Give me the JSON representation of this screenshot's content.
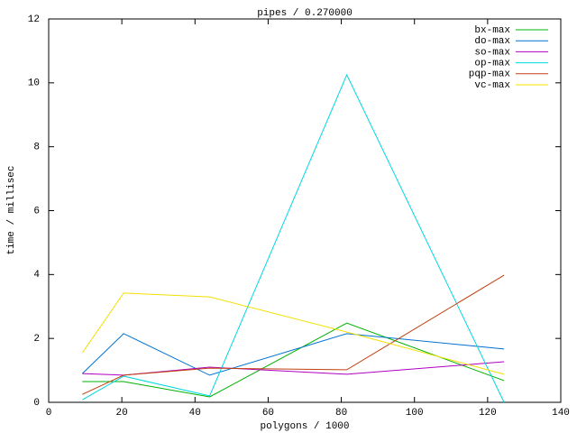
{
  "chart_data": {
    "type": "line",
    "title": "pipes / 0.270000",
    "x_label": "polygons / 1000",
    "y_label": "time / millisec",
    "x": [
      9.2,
      20.5,
      44,
      81.5,
      124.5
    ],
    "xlim": [
      0,
      140
    ],
    "xticks": [
      0,
      20,
      40,
      60,
      80,
      100,
      120,
      140
    ],
    "ylim": [
      0,
      12
    ],
    "yticks": [
      0,
      2,
      4,
      6,
      8,
      10,
      12
    ],
    "grid": false,
    "legend": "top-right",
    "series": [
      {
        "name": "bx-max",
        "color": "#00b000",
        "values": [
          0.65,
          0.65,
          0.17,
          2.48,
          0.68
        ]
      },
      {
        "name": "do-max",
        "color": "#0070d0",
        "values": [
          0.9,
          2.15,
          0.85,
          2.15,
          1.67
        ]
      },
      {
        "name": "so-max",
        "color": "#b000c0",
        "values": [
          0.9,
          0.85,
          1.1,
          0.88,
          1.27
        ]
      },
      {
        "name": "op-max",
        "color": "#00d8e0",
        "values": [
          0.08,
          0.82,
          0.2,
          10.25,
          0
        ]
      },
      {
        "name": "pqp-max",
        "color": "#c04010",
        "values": [
          0.25,
          0.85,
          1.07,
          1.02,
          3.98
        ]
      },
      {
        "name": "vc-max",
        "color": "#f0e000",
        "values": [
          1.55,
          3.42,
          3.3,
          2.2,
          0.88
        ]
      }
    ]
  }
}
